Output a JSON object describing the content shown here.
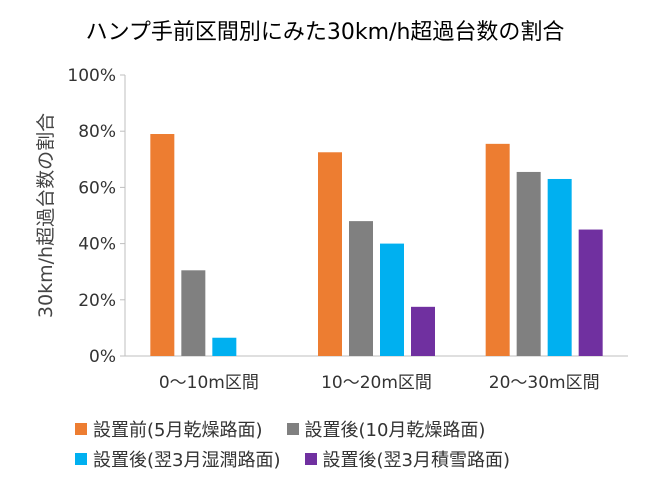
{
  "chart_data": {
    "type": "bar",
    "title": "ハンプ手前区間別にみた30km/h超過台数の割合",
    "ylabel": "30km/h超過台数の割合",
    "xlabel": "",
    "ylim": [
      0,
      1
    ],
    "yticks": [
      {
        "value": 0,
        "label": "0%"
      },
      {
        "value": 0.2,
        "label": "20%"
      },
      {
        "value": 0.4,
        "label": "40%"
      },
      {
        "value": 0.6,
        "label": "60%"
      },
      {
        "value": 0.8,
        "label": "80%"
      },
      {
        "value": 1.0,
        "label": "100%"
      }
    ],
    "categories": [
      "0～10m区間",
      "10～20m区間",
      "20～30m区間"
    ],
    "series": [
      {
        "name": "設置前(5月乾燥路面)",
        "color": "#ED7D31",
        "values": [
          0.79,
          0.725,
          0.755
        ]
      },
      {
        "name": "設置後(10月乾燥路面)",
        "color": "#808080",
        "values": [
          0.305,
          0.48,
          0.655
        ]
      },
      {
        "name": "設置後(翌3月湿潤路面)",
        "color": "#00B0F0",
        "values": [
          0.065,
          0.4,
          0.63
        ]
      },
      {
        "name": "設置後(翌3月積雪路面)",
        "color": "#7030A0",
        "values": [
          0.0,
          0.175,
          0.45
        ]
      }
    ],
    "grid": false,
    "legend_position": "bottom"
  }
}
